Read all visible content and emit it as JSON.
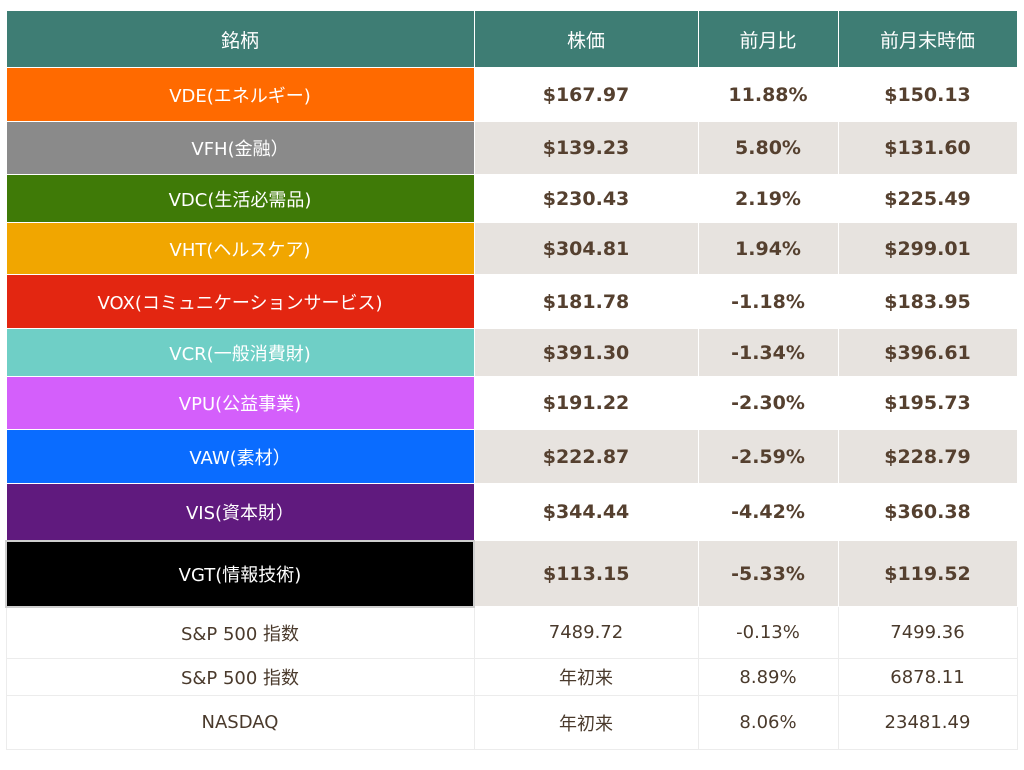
{
  "header": {
    "name": "銘柄",
    "price": "株価",
    "change": "前月比",
    "prev": "前月末時価"
  },
  "sectors": [
    {
      "name": "VDE(エネルギー)",
      "price": "$167.97",
      "change": "11.88%",
      "prev": "$150.13",
      "color": "#ff6a00"
    },
    {
      "name": "VFH(金融）",
      "price": "$139.23",
      "change": "5.80%",
      "prev": "$131.60",
      "color": "#8a8a8a"
    },
    {
      "name": "VDC(生活必需品)",
      "price": "$230.43",
      "change": "2.19%",
      "prev": "$225.49",
      "color": "#3f7a07"
    },
    {
      "name": "VHT(ヘルスケア)",
      "price": "$304.81",
      "change": "1.94%",
      "prev": "$299.01",
      "color": "#f1a600"
    },
    {
      "name": "VOX(コミュニケーションサービス)",
      "price": "$181.78",
      "change": "-1.18%",
      "prev": "$183.95",
      "color": "#e32611"
    },
    {
      "name": "VCR(一般消費財)",
      "price": "$391.30",
      "change": "-1.34%",
      "prev": "$396.61",
      "color": "#6fcfc6"
    },
    {
      "name": "VPU(公益事業)",
      "price": "$191.22",
      "change": "-2.30%",
      "prev": "$195.73",
      "color": "#d45ffb"
    },
    {
      "name": "VAW(素材）",
      "price": "$222.87",
      "change": "-2.59%",
      "prev": "$228.79",
      "color": "#0a6cff"
    },
    {
      "name": "VIS(資本財）",
      "price": "$344.44",
      "change": "-4.42%",
      "prev": "$360.38",
      "color": "#601a7e"
    },
    {
      "name": "VGT(情報技術)",
      "price": "$113.15",
      "change": "-5.33%",
      "prev": "$119.52",
      "color": "#000000"
    }
  ],
  "indices": [
    {
      "name": "S&P 500 指数",
      "price": "7489.72",
      "change": "-0.13%",
      "prev": "7499.36"
    },
    {
      "name": "S&P 500 指数",
      "price": "年初来",
      "change": "8.89%",
      "prev": "6878.11"
    },
    {
      "name": "NASDAQ",
      "price": "年初来",
      "change": "8.06%",
      "prev": "23481.49"
    }
  ]
}
